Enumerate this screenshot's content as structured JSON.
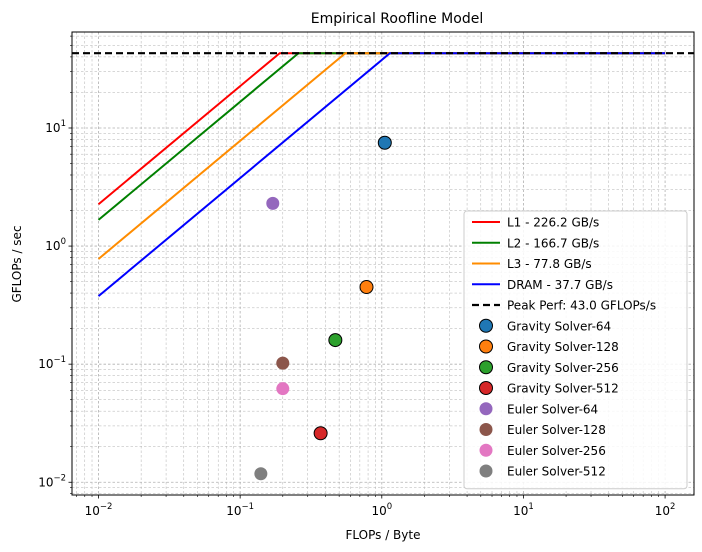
{
  "chart_data": {
    "type": "scatter",
    "title": "Empirical Roofline Model",
    "xlabel": "FLOPs / Byte",
    "ylabel": "GFLOPs / sec",
    "xscale": "log",
    "yscale": "log",
    "xlim": [
      0.0065,
      160
    ],
    "ylim": [
      0.0078,
      65
    ],
    "grid": true,
    "legend_position": "lower-right",
    "x_ticks": [
      {
        "base": "10",
        "exp": "−2",
        "value": 0.01
      },
      {
        "base": "10",
        "exp": "−1",
        "value": 0.1
      },
      {
        "base": "10",
        "exp": "0",
        "value": 1
      },
      {
        "base": "10",
        "exp": "1",
        "value": 10
      },
      {
        "base": "10",
        "exp": "2",
        "value": 100
      }
    ],
    "y_ticks": [
      {
        "base": "10",
        "exp": "−2",
        "value": 0.01
      },
      {
        "base": "10",
        "exp": "−1",
        "value": 0.1
      },
      {
        "base": "10",
        "exp": "0",
        "value": 1
      },
      {
        "base": "10",
        "exp": "1",
        "value": 10
      }
    ],
    "peak": {
      "name": "Peak Perf: 43.0 GFLOPs/s",
      "value": 43.0,
      "color": "#000000"
    },
    "rooflines": [
      {
        "name": "L1 - 226.2 GB/s",
        "bandwidth": 226.2,
        "color": "#ff0000"
      },
      {
        "name": "L2 - 166.7 GB/s",
        "bandwidth": 166.7,
        "color": "#008000"
      },
      {
        "name": "L3 - 77.8 GB/s",
        "bandwidth": 77.8,
        "color": "#ff8c00"
      },
      {
        "name": "DRAM - 37.7 GB/s",
        "bandwidth": 37.7,
        "color": "#0000ff"
      }
    ],
    "roofline_x_range": [
      0.01,
      100
    ],
    "series": [
      {
        "name": "Gravity Solver-64",
        "x": 1.05,
        "y": 7.5,
        "color": "#1f77b4",
        "edge": true
      },
      {
        "name": "Gravity Solver-128",
        "x": 0.78,
        "y": 0.45,
        "color": "#ff7f0e",
        "edge": true
      },
      {
        "name": "Gravity Solver-256",
        "x": 0.47,
        "y": 0.16,
        "color": "#2ca02c",
        "edge": true
      },
      {
        "name": "Gravity Solver-512",
        "x": 0.37,
        "y": 0.026,
        "color": "#d62728",
        "edge": true
      },
      {
        "name": "Euler Solver-64",
        "x": 0.17,
        "y": 2.3,
        "color": "#9467bd",
        "edge": false
      },
      {
        "name": "Euler Solver-128",
        "x": 0.2,
        "y": 0.102,
        "color": "#8c564b",
        "edge": false
      },
      {
        "name": "Euler Solver-256",
        "x": 0.2,
        "y": 0.062,
        "color": "#e377c2",
        "edge": false
      },
      {
        "name": "Euler Solver-512",
        "x": 0.14,
        "y": 0.0118,
        "color": "#7f7f7f",
        "edge": false
      }
    ]
  }
}
